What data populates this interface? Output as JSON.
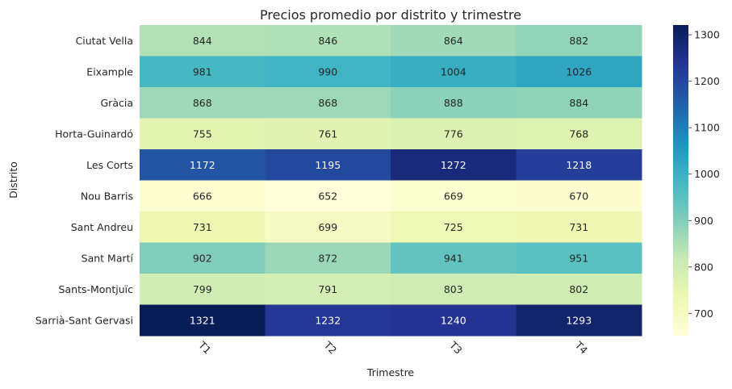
{
  "chart_data": {
    "type": "heatmap",
    "title": "Precios promedio por distrito y trimestre",
    "xlabel": "Trimestre",
    "ylabel": "Distrito",
    "x_categories": [
      "T1",
      "T2",
      "T3",
      "T4"
    ],
    "y_categories": [
      "Ciutat Vella",
      "Eixample",
      "Gràcia",
      "Horta-Guinardó",
      "Les Corts",
      "Nou Barris",
      "Sant Andreu",
      "Sant Martí",
      "Sants-Montjuïc",
      "Sarrià-Sant Gervasi"
    ],
    "values": [
      [
        844,
        846,
        864,
        882
      ],
      [
        981,
        990,
        1004,
        1026
      ],
      [
        868,
        868,
        888,
        884
      ],
      [
        755,
        761,
        776,
        768
      ],
      [
        1172,
        1195,
        1272,
        1218
      ],
      [
        666,
        652,
        669,
        670
      ],
      [
        731,
        699,
        725,
        731
      ],
      [
        902,
        872,
        941,
        951
      ],
      [
        799,
        791,
        803,
        802
      ],
      [
        1321,
        1232,
        1240,
        1293
      ]
    ],
    "colormap": "YlGnBu",
    "vmin": 652,
    "vmax": 1321,
    "colorbar_ticks": [
      700,
      800,
      900,
      1000,
      1100,
      1200,
      1300
    ],
    "annotations": true
  }
}
